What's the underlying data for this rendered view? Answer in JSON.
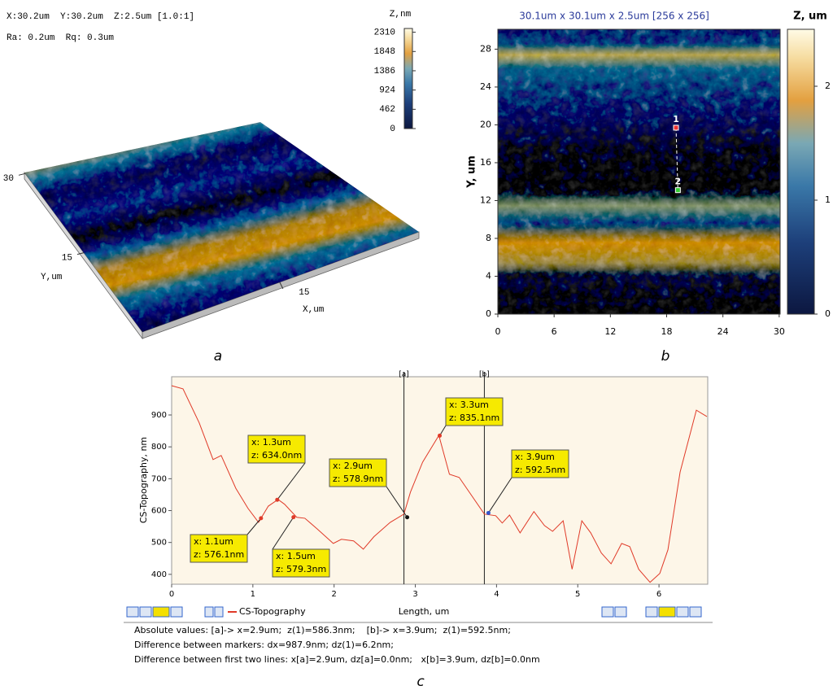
{
  "chart_data": [
    {
      "type": "surface",
      "info": [
        "X:30.2um  Y:30.2um  Z:2.5um [1.0:1]",
        "Ra: 0.2um  Rq: 0.3um"
      ],
      "colorbar": {
        "title": "Z,nm",
        "lim": [
          0,
          2400
        ],
        "ticks": [
          0,
          462,
          924,
          1386,
          1848,
          2310
        ]
      },
      "xlabel": "X,um",
      "ylabel": "Y,um",
      "xlim": [
        0,
        30.2
      ],
      "ylim": [
        0,
        30.2
      ],
      "xticks": [
        15
      ],
      "yticks": [
        15,
        30
      ],
      "caption": "a"
    },
    {
      "type": "heatmap",
      "title": "30.1um x 30.1um x 2.5um [256 x 256]",
      "ylabel": "Y, um",
      "xlim": [
        0,
        30.1
      ],
      "ylim": [
        0,
        30.1
      ],
      "xticks": [
        0,
        6,
        12,
        18,
        24,
        30
      ],
      "yticks": [
        0,
        4,
        8,
        12,
        16,
        20,
        24,
        28
      ],
      "colorbar": {
        "title": "Z, um",
        "lim": [
          0,
          2.5
        ],
        "ticks": [
          0,
          1,
          2
        ]
      },
      "markers": [
        {
          "label": "1",
          "x": 19,
          "y": 19.7
        },
        {
          "label": "2",
          "x": 19.2,
          "y": 13.1
        }
      ],
      "caption": "b"
    },
    {
      "type": "line",
      "xlabel": "Length, um",
      "ylabel": "CS-Topography, nm",
      "xlim": [
        0,
        6.6
      ],
      "ylim": [
        369,
        1020
      ],
      "xticks": [
        0,
        1,
        2,
        3,
        4,
        5,
        6
      ],
      "yticks": [
        400,
        500,
        600,
        700,
        800,
        900
      ],
      "series": [
        {
          "name": "CS-Topography",
          "color": "#e03a28",
          "x": [
            0,
            0.14,
            0.34,
            0.51,
            0.61,
            0.79,
            0.94,
            1.07,
            1.19,
            1.31,
            1.39,
            1.54,
            1.64,
            1.79,
            1.99,
            2.09,
            2.24,
            2.36,
            2.49,
            2.69,
            2.86,
            2.94,
            3.09,
            3.29,
            3.42,
            3.54,
            3.85,
            3.99,
            4.07,
            4.16,
            4.29,
            4.46,
            4.59,
            4.69,
            4.82,
            4.93,
            5.05,
            5.16,
            5.29,
            5.41,
            5.54,
            5.64,
            5.75,
            5.89,
            6.01,
            6.11,
            6.26,
            6.46,
            6.59
          ],
          "values": [
            992,
            982,
            875,
            760,
            773,
            670,
            607,
            563,
            614,
            635,
            620,
            579,
            576,
            543,
            497,
            510,
            505,
            479,
            518,
            563,
            589,
            658,
            752,
            836,
            714,
            704,
            589,
            584,
            561,
            586,
            530,
            597,
            553,
            535,
            568,
            416,
            568,
            530,
            467,
            433,
            497,
            487,
            416,
            375,
            403,
            477,
            721,
            915,
            895
          ]
        }
      ],
      "cursors": [
        {
          "label": "[a]",
          "x": 2.86
        },
        {
          "label": "[b]",
          "x": 3.85
        }
      ],
      "callouts": [
        {
          "x": 1.1,
          "z": 576.1,
          "labels": [
            "x: 1.1um",
            "z: 576.1nm"
          ]
        },
        {
          "x": 1.3,
          "z": 634.0,
          "labels": [
            "x: 1.3um",
            "z: 634.0nm"
          ]
        },
        {
          "x": 1.5,
          "z": 579.3,
          "labels": [
            "x: 1.5um",
            "z: 579.3nm"
          ]
        },
        {
          "x": 2.9,
          "z": 578.9,
          "labels": [
            "x: 2.9um",
            "z: 578.9nm"
          ]
        },
        {
          "x": 3.3,
          "z": 835.1,
          "labels": [
            "x: 3.3um",
            "z: 835.1nm"
          ]
        },
        {
          "x": 3.9,
          "z": 592.5,
          "labels": [
            "x: 3.9um",
            "z: 592.5nm"
          ]
        }
      ],
      "status": [
        "Absolute values: [a]-> x=2.9um;  z(1)=586.3nm;    [b]-> x=3.9um;  z(1)=592.5nm;",
        "Difference between markers: dx=987.9nm; dz(1)=6.2nm;",
        "Difference between first two lines: x[a]=2.9um, dz[a]=0.0nm;   x[b]=3.9um, dz[b]=0.0nm"
      ],
      "caption": "c"
    }
  ]
}
